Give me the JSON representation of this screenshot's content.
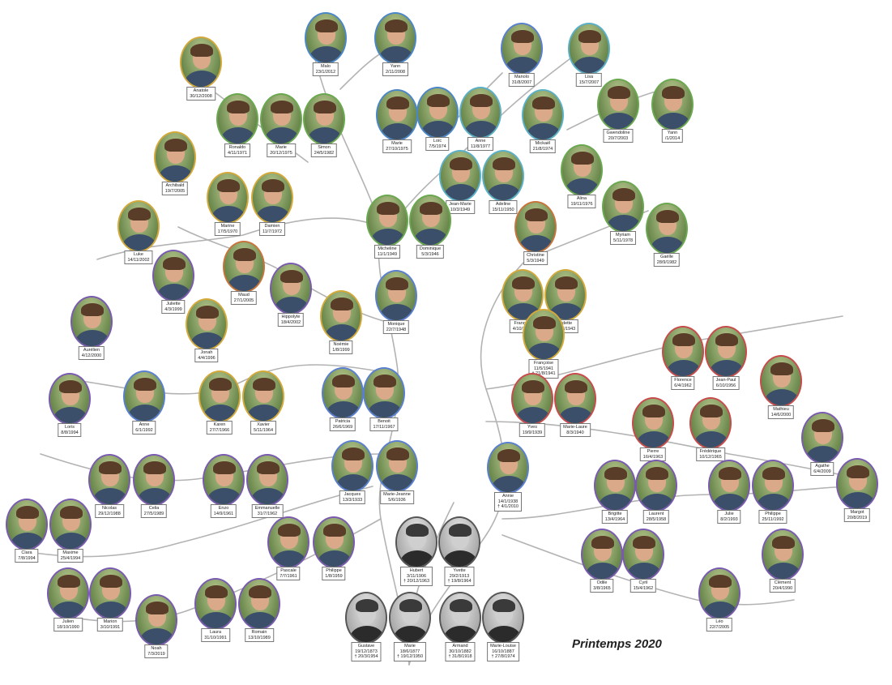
{
  "season_title": "Printemps 2020",
  "colors": {
    "branch": "#a9a9a9",
    "frame_default": "#7aa85c"
  },
  "people": [
    {
      "name": "Anatole",
      "date": "30/12/2008",
      "frame": "#d4a93a"
    },
    {
      "name": "Malo",
      "date": "23/1/2012",
      "frame": "#4b87c8"
    },
    {
      "name": "Yann",
      "date": "2/11/2008",
      "frame": "#4b87c8"
    },
    {
      "name": "Manolo",
      "date": "31/8/2007",
      "frame": "#5a7fd0"
    },
    {
      "name": "Lisa",
      "date": "15/7/2007",
      "frame": "#5ab0c8"
    },
    {
      "name": "Ronaldo",
      "date": "4/11/1971",
      "frame": "#6aa84f"
    },
    {
      "name": "Marie",
      "date": "20/12/1975",
      "frame": "#6aa84f"
    },
    {
      "name": "Simon",
      "date": "24/5/1982",
      "frame": "#6aa84f"
    },
    {
      "name": "Marie",
      "date": "27/10/1975",
      "frame": "#4b87c8"
    },
    {
      "name": "Loïc",
      "date": "7/5/1974",
      "frame": "#4b87c8"
    },
    {
      "name": "Anne",
      "date": "11/8/1977",
      "frame": "#5ab0c8"
    },
    {
      "name": "Mickaël",
      "date": "21/8/1974",
      "frame": "#5ab0c8"
    },
    {
      "name": "Gwendoline",
      "date": "20/7/2003",
      "frame": "#6aa84f"
    },
    {
      "name": "Yann",
      "date": "/1/2014",
      "frame": "#6aa84f"
    },
    {
      "name": "Archibald",
      "date": "19/7/2005",
      "frame": "#d4a93a"
    },
    {
      "name": "Jean-Marie",
      "date": "10/3/1949",
      "frame": "#5ab0c8"
    },
    {
      "name": "Adeline",
      "date": "15/11/1950",
      "frame": "#5ab0c8"
    },
    {
      "name": "Alina",
      "date": "19/11/1976",
      "frame": "#6aa84f"
    },
    {
      "name": "Marine",
      "date": "17/5/1970",
      "frame": "#d4a93a"
    },
    {
      "name": "Damien",
      "date": "11/7/1972",
      "frame": "#d4a93a"
    },
    {
      "name": "Micheline",
      "date": "11/1/1949",
      "frame": "#6aa84f"
    },
    {
      "name": "Dominique",
      "date": "5/3/1946",
      "frame": "#6aa84f"
    },
    {
      "name": "Myriam",
      "date": "5/11/1978",
      "frame": "#6aa84f"
    },
    {
      "name": "Christine",
      "date": "5/3/1949",
      "frame": "#c8733a"
    },
    {
      "name": "Gaëlle",
      "date": "28/9/1982",
      "frame": "#6aa84f"
    },
    {
      "name": "Luke",
      "date": "14/11/2002",
      "frame": "#d4a93a"
    },
    {
      "name": "Juliette",
      "date": "4/3/1999",
      "frame": "#7a5ab0"
    },
    {
      "name": "Maud",
      "date": "27/1/2005",
      "frame": "#c8733a"
    },
    {
      "name": "Hippolyte",
      "date": "18/4/2002",
      "frame": "#7a5ab0"
    },
    {
      "name": "Monique",
      "date": "22/7/1948",
      "frame": "#5a7fd0"
    },
    {
      "name": "François",
      "date": "4/10/1942",
      "frame": "#d4a93a"
    },
    {
      "name": "Odette",
      "date": "22/8/1943",
      "frame": "#d4a93a"
    },
    {
      "name": "Françoise",
      "date": "11/5/1941",
      "date2": "† 21/8/1941",
      "frame": "#d4a93a"
    },
    {
      "name": "Aurélien",
      "date": "4/12/2000",
      "frame": "#7a5ab0"
    },
    {
      "name": "Jonah",
      "date": "4/4/1996",
      "frame": "#d4a93a"
    },
    {
      "name": "Noémie",
      "date": "1/8/1999",
      "frame": "#d4a93a"
    },
    {
      "name": "Florence",
      "date": "6/4/1962",
      "frame": "#c84a4a"
    },
    {
      "name": "Jean-Paul",
      "date": "6/10/1956",
      "frame": "#c84a4a"
    },
    {
      "name": "Mathieu",
      "date": "14/6/2000",
      "frame": "#c84a4a"
    },
    {
      "name": "Loris",
      "date": "8/8/1994",
      "frame": "#7a5ab0"
    },
    {
      "name": "Anne",
      "date": "6/1/1992",
      "frame": "#5a7fd0"
    },
    {
      "name": "Karen",
      "date": "27/7/1966",
      "frame": "#d4a93a"
    },
    {
      "name": "Xavier",
      "date": "5/11/1964",
      "frame": "#d4a93a"
    },
    {
      "name": "Patricia",
      "date": "26/6/1969",
      "frame": "#5a7fd0"
    },
    {
      "name": "Benoit",
      "date": "17/11/1967",
      "frame": "#5a7fd0"
    },
    {
      "name": "Yves",
      "date": "19/9/1939",
      "frame": "#c84a4a"
    },
    {
      "name": "Marie-Laure",
      "date": "8/3/1940",
      "frame": "#c84a4a"
    },
    {
      "name": "Pierre",
      "date": "16/4/1963",
      "frame": "#c84a4a"
    },
    {
      "name": "Frédérique",
      "date": "10/12/1965",
      "frame": "#c84a4a"
    },
    {
      "name": "Agathe",
      "date": "6/4/2009",
      "frame": "#7a5ab0"
    },
    {
      "name": "Nicolas",
      "date": "29/12/1988",
      "frame": "#7a5ab0"
    },
    {
      "name": "Celia",
      "date": "27/5/1989",
      "frame": "#7a5ab0"
    },
    {
      "name": "Enzo",
      "date": "14/9/1961",
      "frame": "#7a5ab0"
    },
    {
      "name": "Emmanuelle",
      "date": "31/7/1962",
      "frame": "#7a5ab0"
    },
    {
      "name": "Jacques",
      "date": "13/3/1933",
      "frame": "#5a7fd0"
    },
    {
      "name": "Marie-Jeanne",
      "date": "5/6/1936",
      "frame": "#5a7fd0"
    },
    {
      "name": "Annie",
      "date": "14/1/1938",
      "date2": "† 4/1/2010",
      "frame": "#5a7fd0"
    },
    {
      "name": "Brigitte",
      "date": "13/4/1964",
      "frame": "#7a5ab0"
    },
    {
      "name": "Laurent",
      "date": "28/5/1958",
      "frame": "#7a5ab0"
    },
    {
      "name": "Julie",
      "date": "8/2/1993",
      "frame": "#7a5ab0"
    },
    {
      "name": "Philippe",
      "date": "25/11/1992",
      "frame": "#7a5ab0"
    },
    {
      "name": "Margot",
      "date": "20/8/2019",
      "frame": "#7a5ab0"
    },
    {
      "name": "Clara",
      "date": "7/8/1994",
      "frame": "#7a5ab0"
    },
    {
      "name": "Maxime",
      "date": "25/4/1994",
      "frame": "#7a5ab0"
    },
    {
      "name": "Pascale",
      "date": "7/7/1961",
      "frame": "#7a5ab0"
    },
    {
      "name": "Philippe",
      "date": "1/8/1959",
      "frame": "#7a5ab0"
    },
    {
      "name": "Hubert",
      "date": "3/11/1906",
      "date2": "† 20/12/1963",
      "frame": "#555555",
      "bw": true
    },
    {
      "name": "Yvette",
      "date": "29/2/1913",
      "date2": "† 19/8/1964",
      "frame": "#555555",
      "bw": true
    },
    {
      "name": "Odile",
      "date": "3/8/1965",
      "frame": "#7a5ab0"
    },
    {
      "name": "Cyril",
      "date": "15/4/1962",
      "frame": "#7a5ab0"
    },
    {
      "name": "Clément",
      "date": "20/4/1990",
      "frame": "#7a5ab0"
    },
    {
      "name": "Julien",
      "date": "18/10/1990",
      "frame": "#7a5ab0"
    },
    {
      "name": "Marion",
      "date": "3/10/1991",
      "frame": "#7a5ab0"
    },
    {
      "name": "Noah",
      "date": "7/3/2019",
      "frame": "#7a5ab0"
    },
    {
      "name": "Laura",
      "date": "31/10/1991",
      "frame": "#7a5ab0"
    },
    {
      "name": "Romain",
      "date": "13/10/1989",
      "frame": "#7a5ab0"
    },
    {
      "name": "Gustave",
      "date": "19/12/1873",
      "date2": "† 20/3/1954",
      "frame": "#555555",
      "bw": true
    },
    {
      "name": "Marie",
      "date": "18/6/1877",
      "date2": "† 19/12/1950",
      "frame": "#555555",
      "bw": true
    },
    {
      "name": "Armand",
      "date": "30/10/1882",
      "date2": "† 31/8/1918",
      "frame": "#555555",
      "bw": true
    },
    {
      "name": "Marie-Louise",
      "date": "16/10/1887",
      "date2": "† 27/8/1974",
      "frame": "#555555",
      "bw": true
    },
    {
      "name": "Léo",
      "date": "22/7/2005",
      "frame": "#7a5ab0"
    }
  ]
}
